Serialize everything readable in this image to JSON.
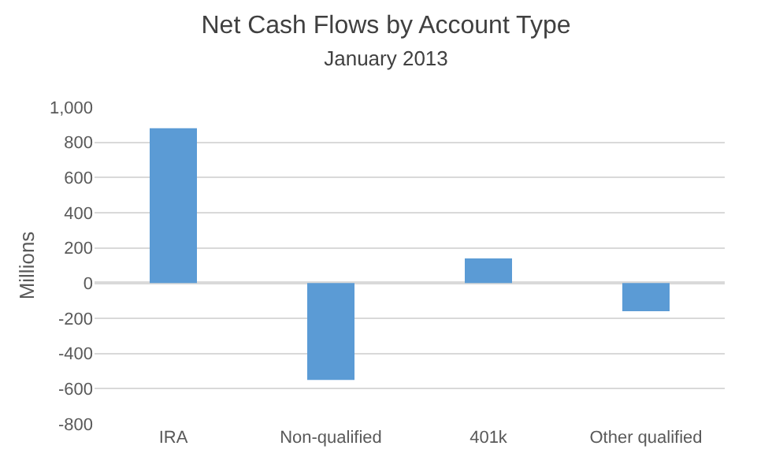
{
  "chart_data": {
    "type": "bar",
    "title": "Net Cash Flows by Account Type",
    "subtitle": "January 2013",
    "ylabel": "Millions",
    "categories": [
      "IRA",
      "Non-qualified",
      "401k",
      "Other qualified"
    ],
    "values": [
      880,
      -550,
      140,
      -160
    ],
    "color": "#5b9bd5",
    "ylim": [
      -800,
      1000
    ],
    "yticks": [
      {
        "value": -800,
        "label": "-800"
      },
      {
        "value": -600,
        "label": "-600"
      },
      {
        "value": -400,
        "label": "-400"
      },
      {
        "value": -200,
        "label": "-200"
      },
      0,
      200,
      400,
      600,
      800,
      {
        "value": 1000,
        "label": "1,000"
      }
    ],
    "grid": "y"
  }
}
